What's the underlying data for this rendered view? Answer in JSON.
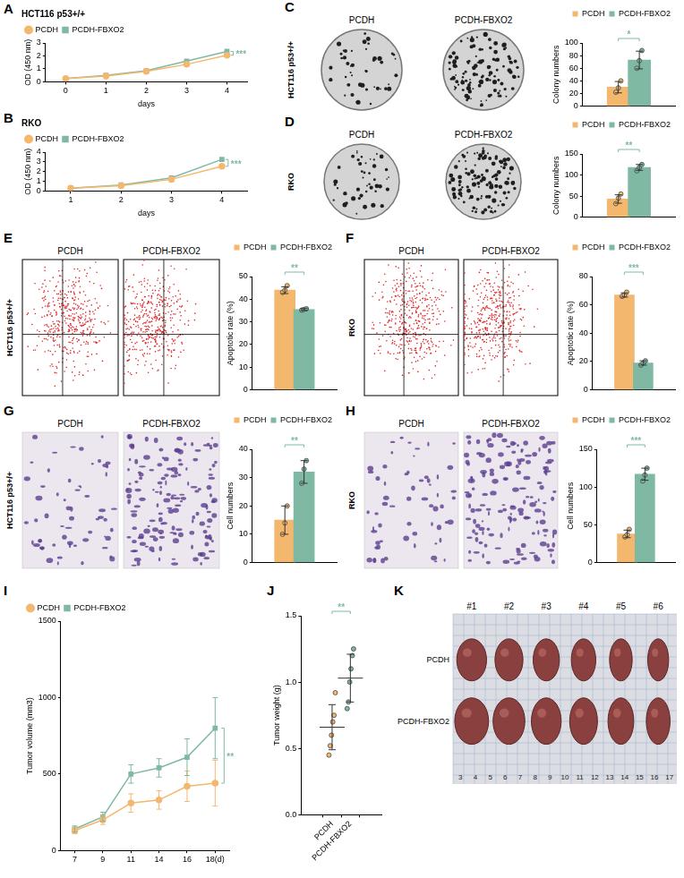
{
  "chart_data": [
    {
      "panel": "A",
      "type": "line",
      "title": "HCT116 p53+/+",
      "categories": [
        "0",
        "1",
        "2",
        "3",
        "4"
      ],
      "x_label": "days",
      "y_label": "OD (450 nm)",
      "ylim": [
        0,
        3
      ],
      "yticks": [
        0,
        1,
        2,
        3
      ],
      "grid": false,
      "legend": "top-left",
      "annotations": [
        "***"
      ],
      "series": [
        {
          "name": "PCDH",
          "color": "#f4b76e",
          "marker": "circle",
          "values": [
            0.25,
            0.45,
            0.8,
            1.35,
            2.05
          ]
        },
        {
          "name": "PCDH-FBXO2",
          "color": "#7fb9a3",
          "marker": "square",
          "values": [
            0.25,
            0.5,
            0.85,
            1.6,
            2.35
          ]
        }
      ]
    },
    {
      "panel": "B",
      "type": "line",
      "title": "RKO",
      "categories": [
        "1",
        "2",
        "3",
        "4"
      ],
      "x_label": "days",
      "y_label": "OD (450 nm)",
      "ylim": [
        0,
        4
      ],
      "yticks": [
        0,
        1,
        2,
        3,
        4
      ],
      "grid": false,
      "legend": "top-left",
      "annotations": [
        "***"
      ],
      "series": [
        {
          "name": "PCDH",
          "color": "#f4b76e",
          "marker": "circle",
          "values": [
            0.28,
            0.55,
            1.2,
            2.55
          ]
        },
        {
          "name": "PCDH-FBXO2",
          "color": "#7fb9a3",
          "marker": "square",
          "values": [
            0.3,
            0.62,
            1.35,
            3.25
          ]
        }
      ]
    },
    {
      "type": "bar",
      "categories": [
        "PCDH",
        "PCDH-FBXO2"
      ],
      "colors": [
        "#f4b76e",
        "#7fb9a3"
      ],
      "values": [
        30,
        73
      ],
      "errors": [
        9,
        14
      ],
      "points": [
        [
          22,
          29,
          40
        ],
        [
          60,
          72,
          88
        ]
      ],
      "y_label": "Colony numbers",
      "ylim": [
        0,
        100
      ],
      "yticks": [
        0,
        20,
        40,
        60,
        80,
        100
      ],
      "grid": false,
      "legend": "top-right",
      "tick_labels": "y",
      "annotations": [
        "*"
      ]
    },
    {
      "type": "bar",
      "categories": [
        "PCDH",
        "PCDH-FBXO2"
      ],
      "colors": [
        "#f4b76e",
        "#7fb9a3"
      ],
      "values": [
        43,
        118
      ],
      "errors": [
        10,
        7
      ],
      "points": [
        [
          32,
          45,
          55
        ],
        [
          110,
          118,
          125
        ]
      ],
      "y_label": "Colony numbers",
      "ylim": [
        0,
        150
      ],
      "yticks": [
        0,
        50,
        100,
        150
      ],
      "grid": false,
      "legend": "top-right",
      "tick_labels": "y",
      "annotations": [
        "**"
      ]
    },
    {
      "type": "bar",
      "categories": [
        "PCDH",
        "PCDH-FBXO2"
      ],
      "colors": [
        "#f4b76e",
        "#7fb9a3"
      ],
      "values": [
        44,
        35.5
      ],
      "errors": [
        1.5,
        0.4
      ],
      "points": [
        [
          43,
          44,
          46
        ],
        [
          35.2,
          35.5,
          35.8
        ]
      ],
      "y_label": "Apoptotic rate (%)",
      "ylim": [
        0,
        50
      ],
      "yticks": [
        0,
        10,
        20,
        30,
        40,
        50
      ],
      "grid": false,
      "legend": "top-right",
      "tick_labels": "y",
      "annotations": [
        "**"
      ]
    },
    {
      "type": "bar",
      "categories": [
        "PCDH",
        "PCDH-FBXO2"
      ],
      "colors": [
        "#f4b76e",
        "#7fb9a3"
      ],
      "values": [
        67,
        19
      ],
      "errors": [
        1.5,
        1.5
      ],
      "points": [
        [
          66,
          67,
          69
        ],
        [
          17.5,
          19,
          20.5
        ]
      ],
      "y_label": "Apoptotic rate (%)",
      "ylim": [
        0,
        80
      ],
      "yticks": [
        0,
        20,
        40,
        60,
        80
      ],
      "grid": false,
      "legend": "top-right",
      "tick_labels": "y",
      "annotations": [
        "***"
      ]
    },
    {
      "type": "bar",
      "categories": [
        "PCDH",
        "PCDH-FBXO2"
      ],
      "colors": [
        "#f4b76e",
        "#7fb9a3"
      ],
      "values": [
        15,
        32
      ],
      "errors": [
        5,
        4
      ],
      "points": [
        [
          10,
          14,
          20
        ],
        [
          28,
          33,
          36
        ]
      ],
      "y_label": "Cell numbers",
      "ylim": [
        0,
        40
      ],
      "yticks": [
        0,
        10,
        20,
        30,
        40
      ],
      "grid": false,
      "legend": "top-right",
      "tick_labels": "y",
      "annotations": [
        "**"
      ]
    },
    {
      "type": "bar",
      "categories": [
        "PCDH",
        "PCDH-FBXO2"
      ],
      "colors": [
        "#f4b76e",
        "#7fb9a3"
      ],
      "values": [
        38,
        117
      ],
      "errors": [
        5,
        8
      ],
      "points": [
        [
          34,
          37,
          44
        ],
        [
          108,
          116,
          125
        ]
      ],
      "y_label": "Cell numbers",
      "ylim": [
        0,
        150
      ],
      "yticks": [
        0,
        50,
        100,
        150
      ],
      "grid": false,
      "legend": "top-right",
      "tick_labels": "y",
      "annotations": [
        "***"
      ]
    },
    {
      "panel": "I",
      "type": "line",
      "categories": [
        "7",
        "9",
        "11",
        "14",
        "16",
        "18(d)"
      ],
      "y_label": "Tumor volume (mm3)",
      "ylim": [
        0,
        1500
      ],
      "yticks": [
        0,
        500,
        1000,
        1500
      ],
      "grid": false,
      "legend": "top-left",
      "annotations": [
        "**"
      ],
      "series": [
        {
          "name": "PCDH",
          "color": "#f4b76e",
          "marker": "circle",
          "values": [
            130,
            200,
            310,
            330,
            420,
            440
          ],
          "errors": [
            20,
            30,
            60,
            60,
            100,
            150
          ]
        },
        {
          "name": "PCDH-FBXO2",
          "color": "#7fb9a3",
          "marker": "square",
          "values": [
            140,
            220,
            500,
            540,
            610,
            800
          ],
          "errors": [
            20,
            30,
            60,
            60,
            120,
            200
          ]
        }
      ]
    },
    {
      "panel": "J",
      "type": "scatter",
      "categories": [
        "PCDH",
        "PCDH-FBXO2"
      ],
      "colors": [
        "#f4b76e",
        "#7fb9a3"
      ],
      "values": [
        0.66,
        1.03
      ],
      "errors": [
        0.17,
        0.18
      ],
      "points": [
        [
          0.45,
          0.52,
          0.6,
          0.7,
          0.75,
          0.92
        ],
        [
          0.8,
          0.85,
          1.0,
          1.1,
          1.2,
          1.25
        ]
      ],
      "y_label": "Tumor weight (g)",
      "ylim": [
        0,
        1.5
      ],
      "yticks": [
        {
          "value": 0,
          "label": "0.0"
        },
        0.5,
        {
          "value": 1,
          "label": "1.0"
        },
        1.5
      ],
      "grid": false,
      "annotations": [
        "**"
      ]
    }
  ],
  "image_panels": [
    {
      "panel": "C",
      "type": "colony",
      "row_label": "HCT116 p53+/+",
      "columns": [
        "PCDH",
        "PCDH-FBXO2"
      ]
    },
    {
      "panel": "D",
      "type": "colony",
      "row_label": "RKO",
      "columns": [
        "PCDH",
        "PCDH-FBXO2"
      ]
    },
    {
      "panel": "E",
      "type": "flow",
      "row_label": "HCT116 p53+/+",
      "columns": [
        "PCDH",
        "PCDH-FBXO2"
      ]
    },
    {
      "panel": "F",
      "type": "flow",
      "row_label": "RKO",
      "columns": [
        "PCDH",
        "PCDH-FBXO2"
      ]
    },
    {
      "panel": "G",
      "type": "transwell",
      "row_label": "HCT116 p53+/+",
      "columns": [
        "PCDH",
        "PCDH-FBXO2"
      ]
    },
    {
      "panel": "H",
      "type": "transwell",
      "row_label": "RKO",
      "columns": [
        "PCDH",
        "PCDH-FBXO2"
      ]
    },
    {
      "panel": "K",
      "type": "tumor",
      "columns": [
        "#1",
        "#2",
        "#3",
        "#4",
        "#5",
        "#6"
      ],
      "rows": [
        "PCDH",
        "PCDH-FBXO2"
      ],
      "ruler": [
        3,
        4,
        5,
        6,
        7,
        8,
        9,
        10,
        11,
        12,
        13,
        14,
        15,
        16,
        17
      ]
    }
  ]
}
